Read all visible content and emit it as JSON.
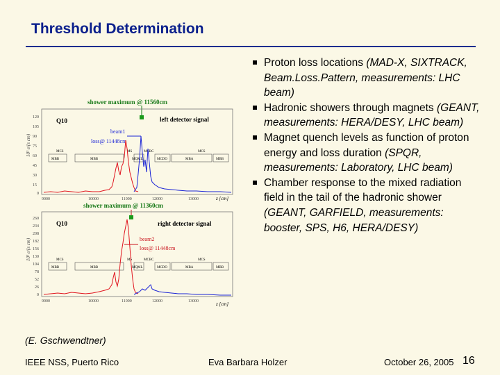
{
  "slide": {
    "title": "Threshold Determination",
    "citation": "(E. Gschwendtner)",
    "footer_left": "IEEE NSS, Puerto Rico",
    "footer_center": "Eva Barbara Holzer",
    "footer_right": "October 26, 2005",
    "page_number": "16"
  },
  "bullets": [
    {
      "normal": "Proton loss locations ",
      "italic": "(MAD-X, SIXTRACK, Beam.Loss.Pattern, measurements: LHC beam)"
    },
    {
      "normal": "Hadronic showers through magnets ",
      "italic": "(GEANT, measurements: HERA/DESY, LHC beam)"
    },
    {
      "normal": "Magnet quench levels as function of proton energy and loss duration ",
      "italic": "(SPQR, measurements: Laboratory, LHC beam)"
    },
    {
      "normal": "Chamber response to the mixed radiation field in the tail of the hadronic shower ",
      "italic": "(GEANT, GARFIELD, measurements: booster, SPS, H6, HERA/DESY)"
    }
  ],
  "figure": {
    "top": {
      "shower_label": "shower maximum @ 11560cm",
      "detector_label": "left detector signal",
      "beam_label": "beam1",
      "loss_label": "loss@ 11448cm",
      "quad_label": "Q10",
      "ylabel": "10³ e/(s cm)",
      "yticks": [
        "120",
        "105",
        "90",
        "75",
        "60",
        "45",
        "30",
        "15",
        "0"
      ],
      "xticks": [
        "9000",
        "10000",
        "11000",
        "12000",
        "13000"
      ],
      "xlabel": "z [cm]",
      "magnets": [
        "MBB",
        "MBB",
        "MQML",
        "MCDO",
        "MBA",
        "MBB"
      ],
      "ms_labels": [
        "MCS",
        "MS",
        "MCBC",
        "MCS"
      ]
    },
    "bottom": {
      "shower_label": "shower maximum @ 11360cm",
      "detector_label": "right detector signal",
      "beam_label": "beam2",
      "loss_label": "loss@ 11448cm",
      "quad_label": "Q10",
      "ylabel": "10³ e/(s cm)",
      "yticks": [
        "260",
        "234",
        "208",
        "182",
        "156",
        "130",
        "104",
        "78",
        "52",
        "26",
        "0"
      ],
      "xticks": [
        "9000",
        "10000",
        "11000",
        "12000",
        "13000"
      ],
      "xlabel": "z [cm]",
      "magnets": [
        "MBB",
        "MBB",
        "MQML",
        "MCDO",
        "MBA",
        "MBB"
      ],
      "ms_labels": [
        "MCS",
        "MS",
        "MCBC",
        "MCS"
      ]
    }
  },
  "colors": {
    "title": "#0a1f8c",
    "rule": "#1c2d8f",
    "red_signal": "#e0141e",
    "blue_signal": "#1a23d6",
    "label_green": "#1a7a1a",
    "label_red": "#c8101a"
  }
}
